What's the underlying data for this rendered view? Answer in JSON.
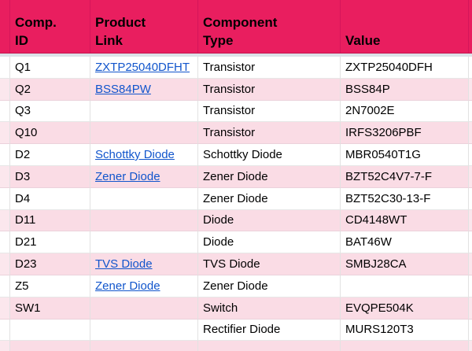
{
  "app": "spreadsheet-grid",
  "colors": {
    "header_bg": "#E91E5F",
    "header_gridline": "#D5155A",
    "band_pink": "#FADCE5",
    "sliver_pink": "#FBE7ED",
    "gridline": "#E2E2E2",
    "frozen_divider": "#DDE1E8",
    "link_blue": "#1155CC"
  },
  "table": {
    "header": {
      "comp_id": "Comp.\nID",
      "product_link": "Product\nLink",
      "component_type": "Component\nType",
      "value": "Value"
    },
    "rows": [
      {
        "id": "Q1",
        "link": "ZXTP25040DFHT",
        "type": "Transistor",
        "value": "ZXTP25040DFH"
      },
      {
        "id": "Q2",
        "link": "BSS84PW",
        "type": "Transistor",
        "value": "BSS84P"
      },
      {
        "id": "Q3",
        "link": "",
        "type": "Transistor",
        "value": "2N7002E"
      },
      {
        "id": "Q10",
        "link": "",
        "type": "Transistor",
        "value": "IRFS3206PBF"
      },
      {
        "id": "D2",
        "link": "Schottky Diode",
        "type": "Schottky Diode",
        "value": "MBR0540T1G"
      },
      {
        "id": "D3",
        "link": "Zener Diode",
        "type": "Zener Diode",
        "value": "BZT52C4V7-7-F"
      },
      {
        "id": "D4",
        "link": "",
        "type": "Zener Diode",
        "value": "BZT52C30-13-F"
      },
      {
        "id": "D11",
        "link": "",
        "type": "Diode",
        "value": "CD4148WT"
      },
      {
        "id": "D21",
        "link": "",
        "type": "Diode",
        "value": "BAT46W"
      },
      {
        "id": "D23",
        "link": "TVS Diode",
        "type": "TVS Diode",
        "value": "SMBJ28CA"
      },
      {
        "id": "Z5",
        "link": "Zener Diode",
        "type": "Zener Diode",
        "value": ""
      },
      {
        "id": "SW1",
        "link": "",
        "type": "Switch",
        "value": "EVQPE504K"
      },
      {
        "id": "",
        "link": "",
        "type": "Rectifier Diode",
        "value": "MURS120T3"
      },
      {
        "id": "",
        "link": "",
        "type": "",
        "value": ""
      }
    ]
  }
}
